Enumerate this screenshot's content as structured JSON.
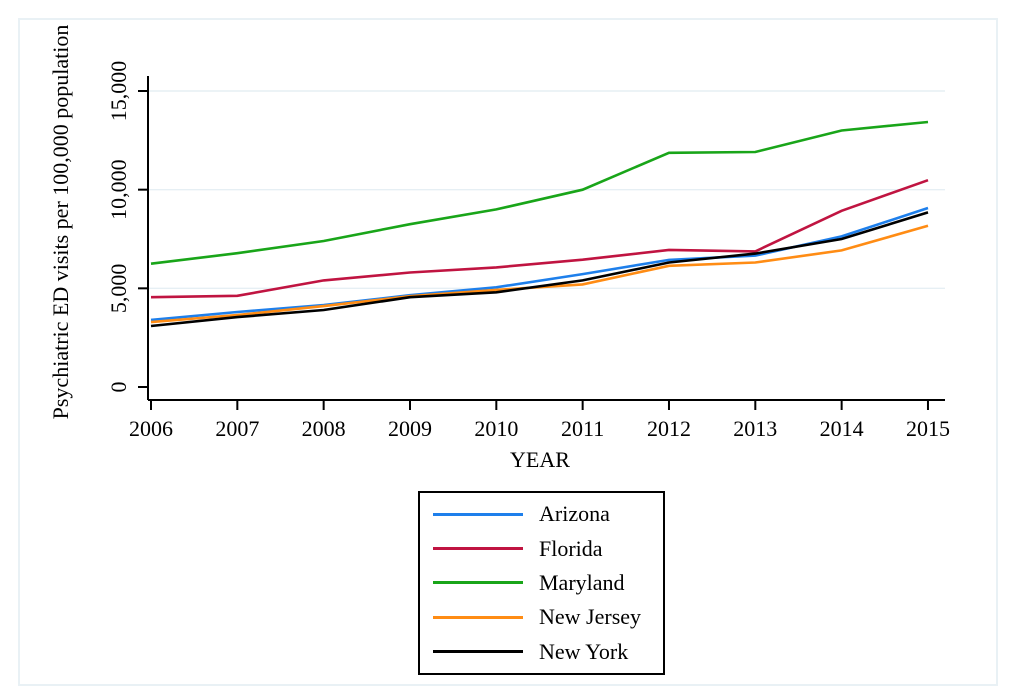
{
  "figure": {
    "background_color": "#ffffff",
    "frame_border_color": "#e9f1f5",
    "gridline_color": "#e6eff4",
    "axis_color": "#000000",
    "grid": "horizontal gridlines at labeled y ticks",
    "legend_position": "bottom-center, boxed"
  },
  "axes": {
    "x_title": "YEAR",
    "y_title": "Psychiatric ED visits per 100,000 population",
    "x_tick_labels": [
      "2006",
      "2007",
      "2008",
      "2009",
      "2010",
      "2011",
      "2012",
      "2013",
      "2014",
      "2015"
    ],
    "y_tick_labels": [
      "0",
      "5,000",
      "10,000",
      "15,000"
    ],
    "y_tick_label_angle_deg": 90
  },
  "legend": {
    "items": [
      {
        "label": "Arizona",
        "color": "#1e7feb"
      },
      {
        "label": "Florida",
        "color": "#c01441"
      },
      {
        "label": "Maryland",
        "color": "#19a519"
      },
      {
        "label": "New Jersey",
        "color": "#ff8c14"
      },
      {
        "label": "New York",
        "color": "#000000"
      }
    ]
  },
  "chart_data": {
    "type": "line",
    "x": [
      2006,
      2007,
      2008,
      2009,
      2010,
      2011,
      2012,
      2013,
      2014,
      2015
    ],
    "series": [
      {
        "name": "Arizona",
        "color": "#1e7feb",
        "values": [
          3400,
          3800,
          4150,
          4650,
          5050,
          5720,
          6440,
          6660,
          7630,
          9070
        ]
      },
      {
        "name": "Florida",
        "color": "#c01441",
        "values": [
          4550,
          4620,
          5400,
          5800,
          6060,
          6450,
          6950,
          6870,
          8930,
          10480
        ]
      },
      {
        "name": "Maryland",
        "color": "#19a519",
        "values": [
          6250,
          6780,
          7400,
          8250,
          9000,
          10000,
          11870,
          11910,
          13000,
          13430
        ]
      },
      {
        "name": "New Jersey",
        "color": "#ff8c14",
        "values": [
          3290,
          3650,
          4100,
          4600,
          4920,
          5200,
          6140,
          6310,
          6920,
          8170
        ]
      },
      {
        "name": "New York",
        "color": "#000000",
        "values": [
          3090,
          3540,
          3900,
          4550,
          4800,
          5400,
          6310,
          6760,
          7500,
          8850
        ]
      }
    ],
    "title": "",
    "xlabel": "YEAR",
    "ylabel": "Psychiatric ED visits per 100,000 population",
    "ylim": [
      0,
      15000
    ],
    "yticks": [
      0,
      5000,
      10000,
      15000
    ],
    "ytick_labels": [
      "0",
      "5,000",
      "10,000",
      "15,000"
    ],
    "xlim": [
      2006,
      2015
    ],
    "grid": "on",
    "legend_position": "bottom"
  }
}
